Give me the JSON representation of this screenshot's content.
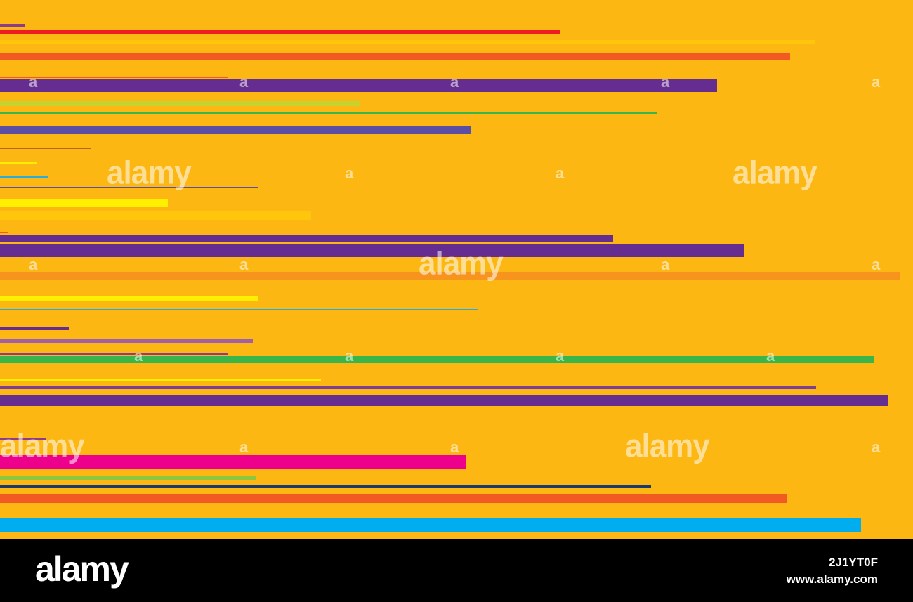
{
  "artwork": {
    "background_color": "#fcb713",
    "stripe_colors": [
      "#ed1c24",
      "#ffc60b",
      "#f15a22",
      "#662d91",
      "#c7d22e",
      "#5b4ea3",
      "#ffef00",
      "#29abe2",
      "#f7941d",
      "#39b54a",
      "#ec008c",
      "#00aeef",
      "#8dc63f",
      "#662d91",
      "#1b75bc"
    ]
  },
  "watermark": {
    "brand": "alamy",
    "glyph": "a"
  },
  "footer": {
    "logo": "alamy",
    "image_id": "2J1YT0F",
    "url": "www.alamy.com"
  }
}
